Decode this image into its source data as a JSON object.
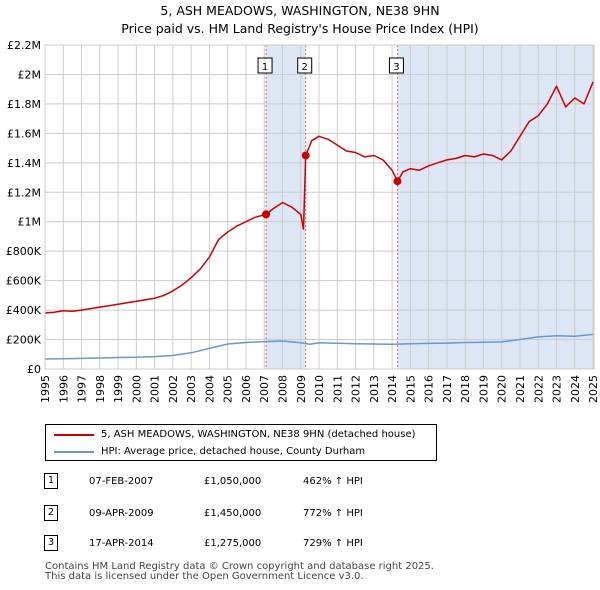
{
  "title_line1": "5, ASH MEADOWS, WASHINGTON, NE38 9HN",
  "title_line2": "Price paid vs. HM Land Registry's House Price Index (HPI)",
  "colors": {
    "property": "#cc0000",
    "hpi": "#6699cc",
    "shade": "#dde6f5",
    "grid": "#cccccc",
    "vline": "#dd6666"
  },
  "chart_data": {
    "type": "line",
    "xlabel": "",
    "ylabel": "",
    "xlim": [
      1995.0,
      2025.05
    ],
    "ylim": [
      0,
      2200000
    ],
    "y_ticks": [
      {
        "value": 0,
        "label": "£0"
      },
      {
        "value": 200000,
        "label": "£200K"
      },
      {
        "value": 400000,
        "label": "£400K"
      },
      {
        "value": 600000,
        "label": "£600K"
      },
      {
        "value": 800000,
        "label": "£800K"
      },
      {
        "value": 1000000,
        "label": "£1M"
      },
      {
        "value": 1200000,
        "label": "£1.2M"
      },
      {
        "value": 1400000,
        "label": "£1.4M"
      },
      {
        "value": 1600000,
        "label": "£1.6M"
      },
      {
        "value": 1800000,
        "label": "£1.8M"
      },
      {
        "value": 2000000,
        "label": "£2M"
      },
      {
        "value": 2200000,
        "label": "£2.2M"
      }
    ],
    "x_ticks": [
      "1995",
      "1996",
      "1997",
      "1998",
      "1999",
      "2000",
      "2001",
      "2002",
      "2003",
      "2004",
      "2005",
      "2006",
      "2007",
      "2008",
      "2009",
      "2010",
      "2011",
      "2012",
      "2013",
      "2014",
      "2015",
      "2016",
      "2017",
      "2018",
      "2019",
      "2020",
      "2021",
      "2022",
      "2023",
      "2024",
      "2025"
    ],
    "shaded_ranges": [
      [
        2007.1,
        2009.27
      ],
      [
        2014.29,
        2025.05
      ]
    ],
    "series": [
      {
        "name": "5, ASH MEADOWS, WASHINGTON, NE38 9HN (detached house)",
        "x": [
          1995.0,
          1995.5,
          1996.0,
          1996.5,
          1997.0,
          1997.5,
          1998.0,
          1998.5,
          1999.0,
          1999.5,
          2000.0,
          2000.5,
          2001.0,
          2001.5,
          2002.0,
          2002.5,
          2003.0,
          2003.5,
          2004.0,
          2004.5,
          2005.0,
          2005.5,
          2006.0,
          2006.5,
          2007.1,
          2007.5,
          2008.0,
          2008.5,
          2009.0,
          2009.15,
          2009.27,
          2009.6,
          2010.0,
          2010.5,
          2011.0,
          2011.5,
          2012.0,
          2012.5,
          2013.0,
          2013.5,
          2014.0,
          2014.29,
          2014.6,
          2015.0,
          2015.5,
          2016.0,
          2016.5,
          2017.0,
          2017.5,
          2018.0,
          2018.5,
          2019.0,
          2019.5,
          2020.0,
          2020.5,
          2021.0,
          2021.5,
          2022.0,
          2022.5,
          2023.0,
          2023.5,
          2024.0,
          2024.5,
          2025.0
        ],
        "y": [
          380000,
          385000,
          395000,
          392000,
          400000,
          410000,
          420000,
          430000,
          440000,
          450000,
          460000,
          470000,
          480000,
          500000,
          530000,
          570000,
          620000,
          680000,
          760000,
          880000,
          930000,
          970000,
          1000000,
          1030000,
          1050000,
          1090000,
          1130000,
          1100000,
          1050000,
          950000,
          1450000,
          1550000,
          1580000,
          1560000,
          1520000,
          1480000,
          1470000,
          1440000,
          1450000,
          1420000,
          1350000,
          1275000,
          1340000,
          1360000,
          1350000,
          1380000,
          1400000,
          1420000,
          1430000,
          1450000,
          1440000,
          1460000,
          1450000,
          1420000,
          1480000,
          1580000,
          1680000,
          1720000,
          1800000,
          1920000,
          1780000,
          1840000,
          1800000,
          1950000
        ]
      },
      {
        "name": "HPI: Average price, detached house, County Durham",
        "x": [
          1995.0,
          1996.0,
          1997.0,
          1998.0,
          1999.0,
          2000.0,
          2001.0,
          2002.0,
          2003.0,
          2004.0,
          2005.0,
          2006.0,
          2007.0,
          2008.0,
          2009.0,
          2009.5,
          2010.0,
          2011.0,
          2012.0,
          2013.0,
          2014.0,
          2015.0,
          2016.0,
          2017.0,
          2018.0,
          2019.0,
          2020.0,
          2021.0,
          2022.0,
          2023.0,
          2024.0,
          2025.0
        ],
        "y": [
          68000,
          69000,
          72000,
          75000,
          78000,
          80000,
          84000,
          92000,
          110000,
          140000,
          170000,
          180000,
          186000,
          190000,
          178000,
          168000,
          178000,
          175000,
          172000,
          170000,
          168000,
          172000,
          174000,
          176000,
          180000,
          182000,
          184000,
          200000,
          218000,
          226000,
          222000,
          235000
        ]
      }
    ],
    "sales": [
      {
        "label": "1",
        "x": 2007.1,
        "price": 1050000
      },
      {
        "label": "2",
        "x": 2009.27,
        "price": 1450000
      },
      {
        "label": "3",
        "x": 2014.29,
        "price": 1275000
      }
    ]
  },
  "legend": {
    "property_label": "5, ASH MEADOWS, WASHINGTON, NE38 9HN (detached house)",
    "hpi_label": "HPI: Average price, detached house, County Durham"
  },
  "sales_table": [
    {
      "num": "1",
      "date": "07-FEB-2007",
      "price": "£1,050,000",
      "hpi": "462% ↑ HPI"
    },
    {
      "num": "2",
      "date": "09-APR-2009",
      "price": "£1,450,000",
      "hpi": "772% ↑ HPI"
    },
    {
      "num": "3",
      "date": "17-APR-2014",
      "price": "£1,275,000",
      "hpi": "729% ↑ HPI"
    }
  ],
  "footer": {
    "line1": "Contains HM Land Registry data © Crown copyright and database right 2025.",
    "line2": "This data is licensed under the Open Government Licence v3.0."
  }
}
